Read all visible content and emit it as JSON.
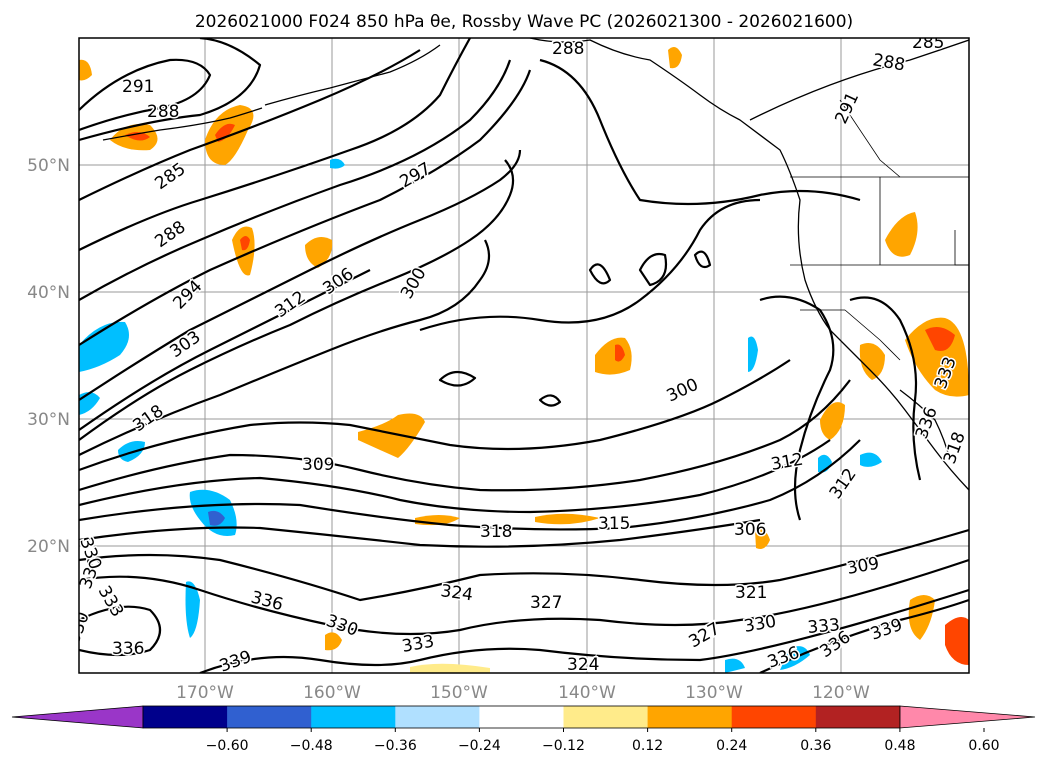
{
  "title": "2026021000 F024 850 hPa θe, Rossby Wave PC (2026021300 - 2026021600)",
  "map": {
    "lon_labels": [
      "170°W",
      "160°W",
      "150°W",
      "140°W",
      "130°W",
      "120°W"
    ],
    "lat_labels": [
      "50°N",
      "40°N",
      "30°N",
      "20°N"
    ]
  },
  "contour_labels": {
    "c291a": "291",
    "c288a": "288",
    "c285": "285",
    "c288b": "288",
    "c294": "294",
    "c303": "303",
    "c318a": "318",
    "c297": "297",
    "c306a": "306",
    "c312a": "312",
    "c300a": "300",
    "c288c": "288",
    "c288d": "288",
    "c285b": "285",
    "c291b": "291",
    "c300b": "300",
    "c309a": "309",
    "c318b": "318",
    "c315": "315",
    "c312b": "312",
    "c306b": "306",
    "c314": "312",
    "c309b": "309",
    "c321": "321",
    "c324a": "324",
    "c327a": "327",
    "c330a": "330",
    "c333a": "333",
    "c336a": "336",
    "c330b": "330",
    "c333b": "333",
    "c336b": "336",
    "c339a": "339",
    "c327b": "327",
    "c330c": "330",
    "c333c": "333",
    "c336c": "336",
    "c339b": "339",
    "c324b": "324",
    "c336d": "336",
    "c330d": "330",
    "c333d": "333",
    "c330e": "330",
    "c336e": "336",
    "c318c": "318"
  },
  "colorbar": {
    "ticks": [
      "−0.60",
      "−0.48",
      "−0.36",
      "−0.24",
      "−0.12",
      "0.12",
      "0.24",
      "0.36",
      "0.48",
      "0.60"
    ],
    "colors": {
      "under": "#9a36c8",
      "bins": [
        "#00008b",
        "#3060d0",
        "#00bfff",
        "#b0e0ff",
        "#ffffff",
        "#ffeb8a",
        "#ffa500",
        "#ff4500",
        "#b22222"
      ],
      "over": "#ff88aa"
    }
  }
}
